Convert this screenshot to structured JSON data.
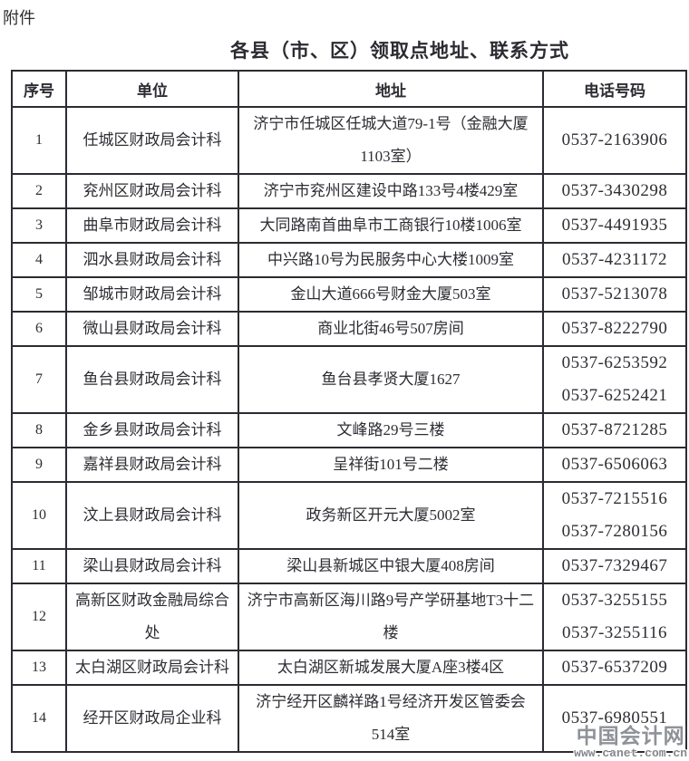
{
  "page": {
    "attachment_label": "附件",
    "title": "各县（市、区）领取点地址、联系方式"
  },
  "table": {
    "headers": [
      "序号",
      "单位",
      "地址",
      "电话号码"
    ],
    "rows": [
      {
        "no": "1",
        "unit": [
          "任城区财政局会计科"
        ],
        "address": [
          "济宁市任城区任城大道79-1号（金融大厦",
          "1103室）"
        ],
        "phones": [
          "0537-2163906"
        ]
      },
      {
        "no": "2",
        "unit": [
          "兖州区财政局会计科"
        ],
        "address": [
          "济宁市兖州区建设中路133号4楼429室"
        ],
        "phones": [
          "0537-3430298"
        ]
      },
      {
        "no": "3",
        "unit": [
          "曲阜市财政局会计科"
        ],
        "address": [
          "大同路南首曲阜市工商银行10楼1006室"
        ],
        "phones": [
          "0537-4491935"
        ]
      },
      {
        "no": "4",
        "unit": [
          "泗水县财政局会计科"
        ],
        "address": [
          "中兴路10号为民服务中心大楼1009室"
        ],
        "phones": [
          "0537-4231172"
        ]
      },
      {
        "no": "5",
        "unit": [
          "邹城市财政局会计科"
        ],
        "address": [
          "金山大道666号财金大厦503室"
        ],
        "phones": [
          "0537-5213078"
        ]
      },
      {
        "no": "6",
        "unit": [
          "微山县财政局会计科"
        ],
        "address": [
          "商业北街46号507房间"
        ],
        "phones": [
          "0537-8222790"
        ]
      },
      {
        "no": "7",
        "unit": [
          "鱼台县财政局会计科"
        ],
        "address": [
          "鱼台县孝贤大厦1627"
        ],
        "phones": [
          "0537-6253592",
          "0537-6252421"
        ]
      },
      {
        "no": "8",
        "unit": [
          "金乡县财政局会计科"
        ],
        "address": [
          "文峰路29号三楼"
        ],
        "phones": [
          "0537-8721285"
        ]
      },
      {
        "no": "9",
        "unit": [
          "嘉祥县财政局会计科"
        ],
        "address": [
          "呈祥街101号二楼"
        ],
        "phones": [
          "0537-6506063"
        ]
      },
      {
        "no": "10",
        "unit": [
          "汶上县财政局会计科"
        ],
        "address": [
          "政务新区开元大厦5002室"
        ],
        "phones": [
          "0537-7215516",
          "0537-7280156"
        ]
      },
      {
        "no": "11",
        "unit": [
          "梁山县财政局会计科"
        ],
        "address": [
          "梁山县新城区中银大厦408房间"
        ],
        "phones": [
          "0537-7329467"
        ]
      },
      {
        "no": "12",
        "unit": [
          "高新区财政金融局综合",
          "处"
        ],
        "address": [
          "济宁市高新区海川路9号产学研基地T3十二",
          "楼"
        ],
        "phones": [
          "0537-3255155",
          "0537-3255116"
        ]
      },
      {
        "no": "13",
        "unit": [
          "太白湖区财政局会计科"
        ],
        "address": [
          "太白湖区新城发展大厦A座3楼4区"
        ],
        "phones": [
          "0537-6537209"
        ]
      },
      {
        "no": "14",
        "unit": [
          "经开区财政局企业科"
        ],
        "address": [
          "济宁经开区麟祥路1号经济开发区管委会",
          "514室"
        ],
        "phones": [
          "0537-6980551"
        ]
      }
    ]
  },
  "watermark": {
    "site_name": "中国会计网",
    "site_url": "www.canet.com.cn"
  }
}
